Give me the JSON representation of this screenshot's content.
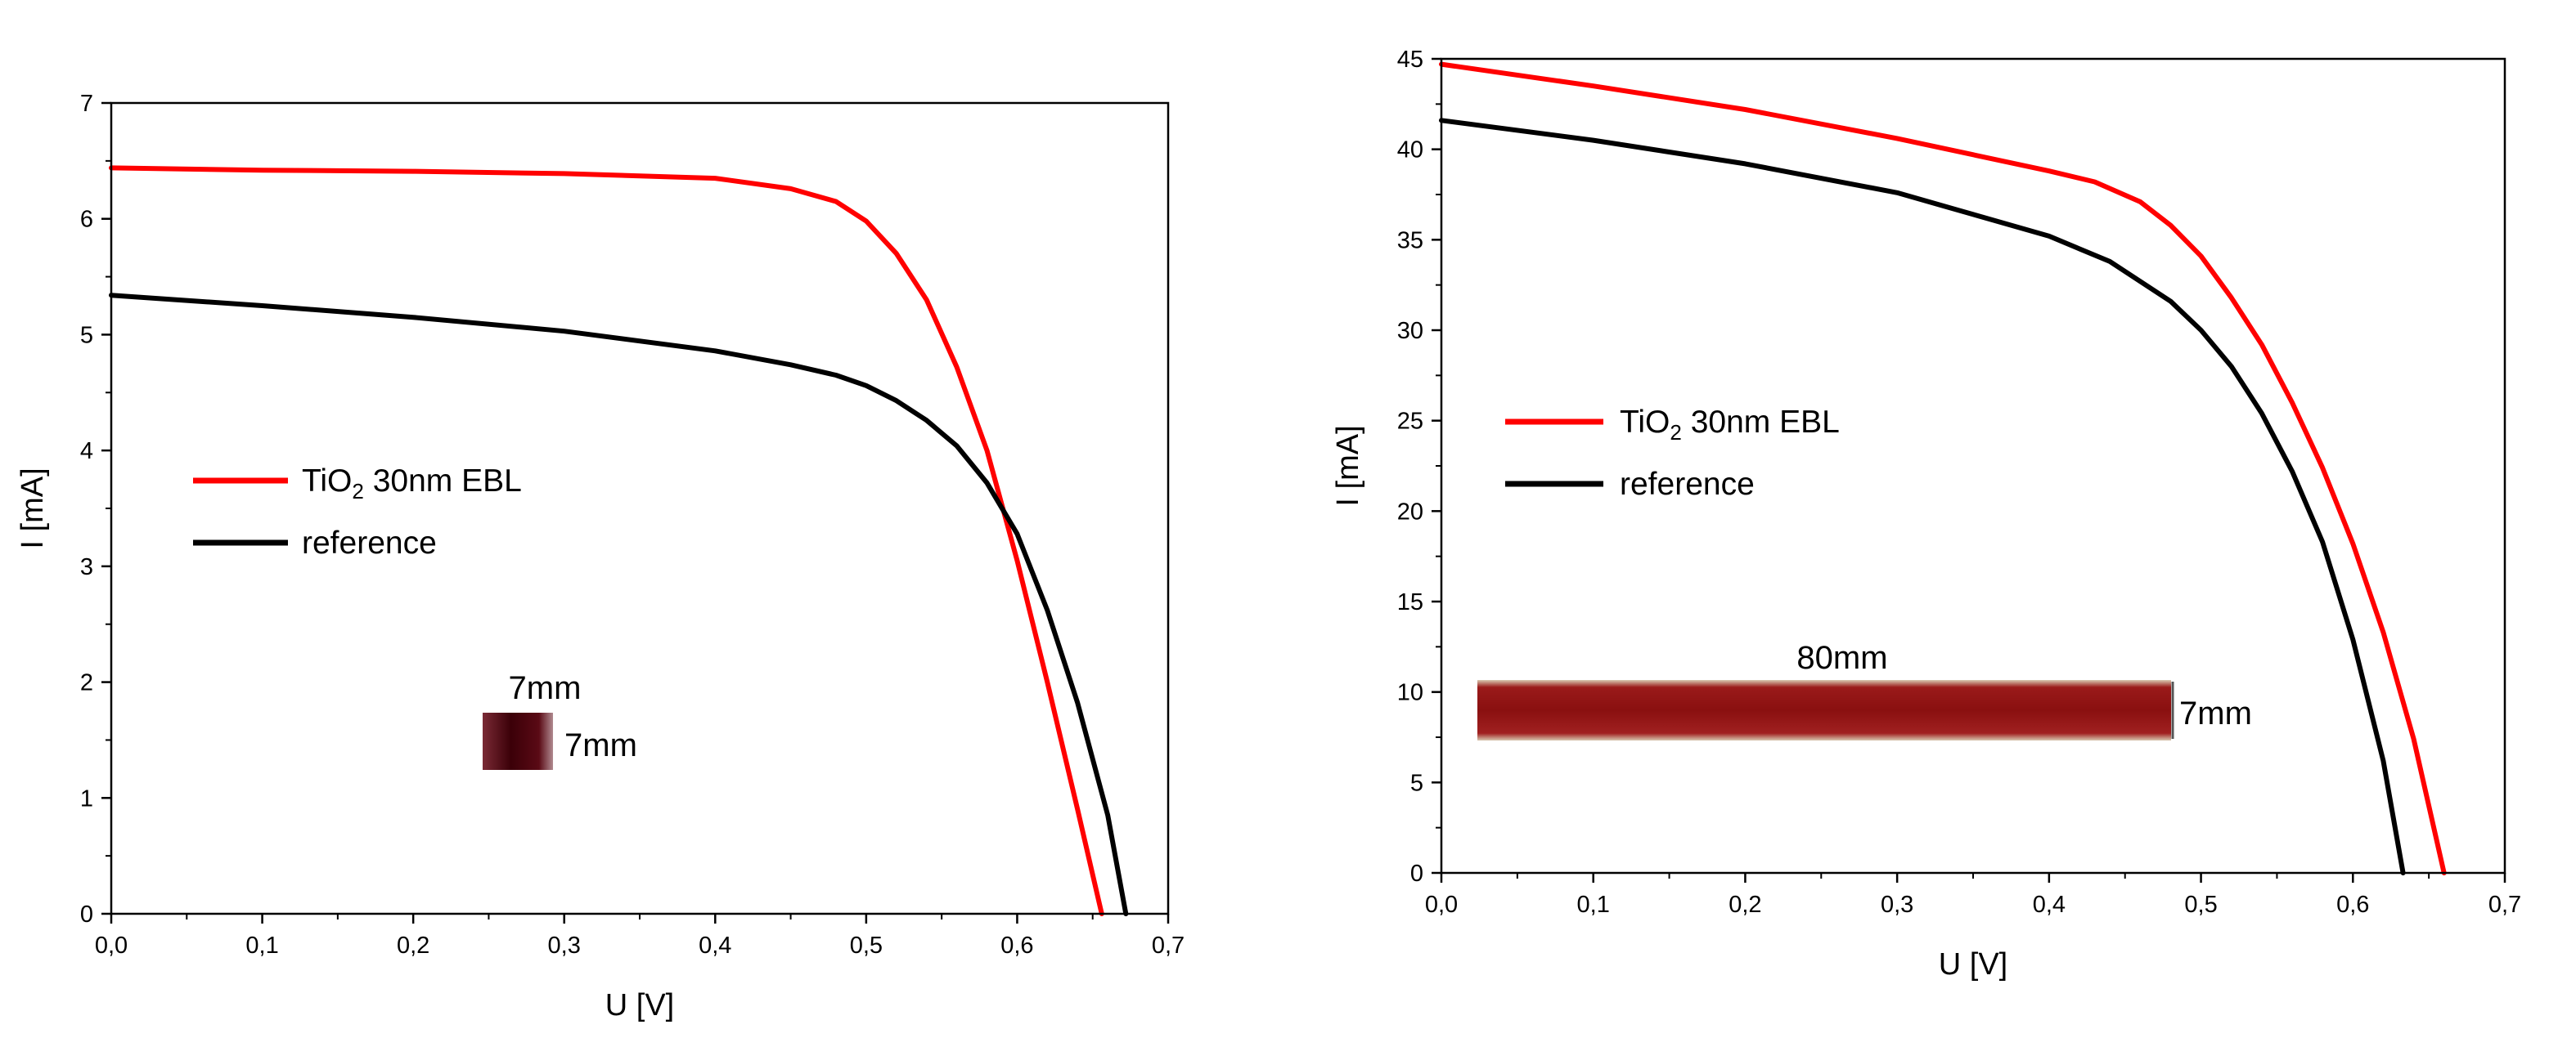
{
  "chart_data": [
    {
      "type": "line",
      "id": "left",
      "xlabel": "U [V]",
      "ylabel": "I [mA]",
      "xlim": [
        0,
        0.7
      ],
      "ylim": [
        0,
        7
      ],
      "xticks": [
        "0,0",
        "0,1",
        "0,2",
        "0,3",
        "0,4",
        "0,5",
        "0,6",
        "0,7"
      ],
      "yticks": [
        "0",
        "1",
        "2",
        "3",
        "4",
        "5",
        "6",
        "7"
      ],
      "legend": {
        "position": "middle-left",
        "entries": [
          {
            "label": "TiO",
            "sub": "2",
            "suffix": " 30nm EBL"
          },
          {
            "label": "reference",
            "sub": "",
            "suffix": ""
          }
        ]
      },
      "series": [
        {
          "name": "TiO2 30nm EBL",
          "color": "#ff0000",
          "x": [
            0,
            0.1,
            0.2,
            0.3,
            0.4,
            0.45,
            0.48,
            0.5,
            0.52,
            0.54,
            0.56,
            0.58,
            0.6,
            0.62,
            0.64,
            0.656
          ],
          "y": [
            6.44,
            6.42,
            6.41,
            6.39,
            6.35,
            6.26,
            6.15,
            5.98,
            5.7,
            5.3,
            4.72,
            4.0,
            3.05,
            2.0,
            0.9,
            0
          ]
        },
        {
          "name": "reference",
          "color": "#000000",
          "x": [
            0,
            0.1,
            0.2,
            0.3,
            0.4,
            0.45,
            0.48,
            0.5,
            0.52,
            0.54,
            0.56,
            0.58,
            0.6,
            0.62,
            0.64,
            0.66,
            0.672
          ],
          "y": [
            5.34,
            5.25,
            5.15,
            5.03,
            4.86,
            4.74,
            4.65,
            4.56,
            4.43,
            4.26,
            4.04,
            3.72,
            3.28,
            2.62,
            1.82,
            0.85,
            0
          ]
        }
      ],
      "annotations": {
        "photo_width": "7mm",
        "photo_height": "7mm",
        "photo_color": "#4a0a12"
      }
    },
    {
      "type": "line",
      "id": "right",
      "xlabel": "U [V]",
      "ylabel": "I [mA]",
      "xlim": [
        0,
        0.7
      ],
      "ylim": [
        0,
        45
      ],
      "xticks": [
        "0,0",
        "0,1",
        "0,2",
        "0,3",
        "0,4",
        "0,5",
        "0,6",
        "0,7"
      ],
      "yticks": [
        "0",
        "5",
        "10",
        "15",
        "20",
        "25",
        "30",
        "35",
        "40",
        "45"
      ],
      "legend": {
        "position": "middle-left",
        "entries": [
          {
            "label": "TiO",
            "sub": "2",
            "suffix": " 30nm EBL"
          },
          {
            "label": "reference",
            "sub": "",
            "suffix": ""
          }
        ]
      },
      "series": [
        {
          "name": "TiO2 30nm EBL",
          "color": "#ff0000",
          "x": [
            0,
            0.1,
            0.2,
            0.3,
            0.4,
            0.43,
            0.46,
            0.48,
            0.5,
            0.52,
            0.54,
            0.56,
            0.58,
            0.6,
            0.62,
            0.64,
            0.66
          ],
          "y": [
            44.7,
            43.5,
            42.2,
            40.6,
            38.8,
            38.2,
            37.1,
            35.8,
            34.1,
            31.8,
            29.2,
            26.0,
            22.4,
            18.2,
            13.3,
            7.4,
            0
          ]
        },
        {
          "name": "reference",
          "color": "#000000",
          "x": [
            0,
            0.1,
            0.2,
            0.3,
            0.4,
            0.44,
            0.48,
            0.5,
            0.52,
            0.54,
            0.56,
            0.58,
            0.6,
            0.62,
            0.633
          ],
          "y": [
            41.6,
            40.5,
            39.2,
            37.6,
            35.2,
            33.8,
            31.6,
            30.0,
            28.0,
            25.4,
            22.2,
            18.3,
            12.9,
            6.2,
            0
          ]
        }
      ],
      "annotations": {
        "photo_width": "80mm",
        "photo_height": "7mm",
        "photo_color": "#8a1414"
      }
    }
  ]
}
